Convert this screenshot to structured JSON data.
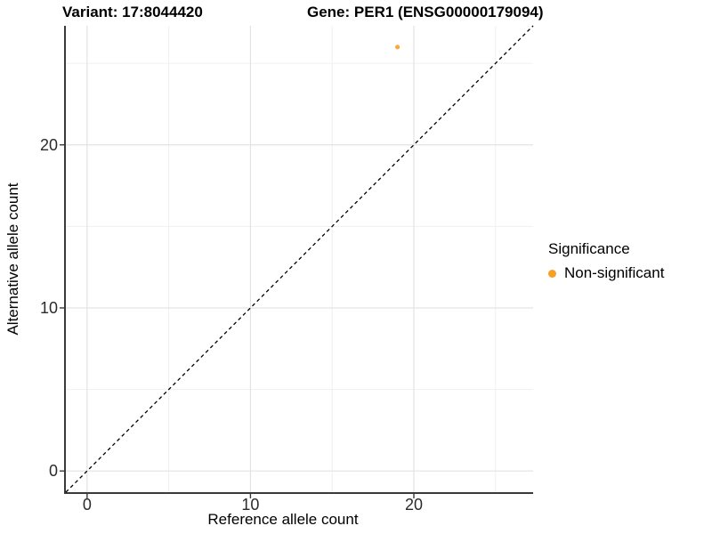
{
  "titles": {
    "variant": "Variant: 17:8044420",
    "gene": "Gene: PER1 (ENSG00000179094)"
  },
  "colors": {
    "background": "#ffffff",
    "axis_line": "#3a3a3a",
    "major_grid": "#e3e3e3",
    "minor_grid": "#f0f0f0",
    "tick_text": "#2b2b2b",
    "significance_orange": "#FB9E27"
  },
  "chart_data": {
    "type": "scatter",
    "title_left": "Variant: 17:8044420",
    "title_right": "Gene: PER1 (ENSG00000179094)",
    "xlabel": "Reference allele count",
    "ylabel": "Alternative allele count",
    "xlim": [
      -1.3,
      27.3
    ],
    "ylim": [
      -1.3,
      27.3
    ],
    "x_tick_values": [
      0,
      10,
      20
    ],
    "x_tick_labels": [
      "0",
      "10",
      "20"
    ],
    "y_tick_values": [
      0,
      10,
      20
    ],
    "y_tick_labels": [
      "0",
      "10",
      "20"
    ],
    "x_minor_gridlines": [
      5,
      15,
      25
    ],
    "y_minor_gridlines": [
      5,
      15,
      25
    ],
    "grid": "major and minor light-gray gridlines on white panel",
    "identity_line": {
      "equation": "y = x",
      "style": "dashed",
      "color": "#000000"
    },
    "points": [
      {
        "x": 19,
        "y": 26,
        "series": "Non-significant",
        "color": "#FB9E27",
        "radius": 2.6
      }
    ],
    "legend": {
      "position": "right",
      "title": "Significance",
      "entries": [
        {
          "label": "Non-significant",
          "color": "#FB9E27"
        }
      ]
    }
  }
}
